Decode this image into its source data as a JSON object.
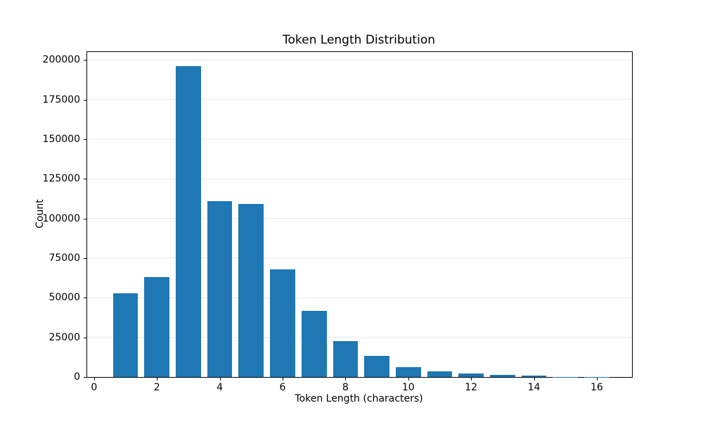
{
  "figure": {
    "background": "#ffffff",
    "frame_color": "#000000"
  },
  "chart_data": {
    "type": "bar",
    "title": "Token Length Distribution",
    "xlabel": "Token Length (characters)",
    "ylabel": "Count",
    "categories": [
      1,
      2,
      3,
      4,
      5,
      6,
      7,
      8,
      9,
      10,
      11,
      12,
      13,
      14,
      15,
      16
    ],
    "values": [
      53000,
      63000,
      196000,
      111000,
      109000,
      68000,
      41500,
      22700,
      13300,
      6200,
      3600,
      2300,
      1200,
      700,
      200,
      60
    ],
    "bar_color": "#1f77b4",
    "bar_width": 0.8,
    "xlim": [
      -0.22,
      17.12
    ],
    "ylim": [
      0,
      205000
    ],
    "x_ticks": [
      0,
      2,
      4,
      6,
      8,
      10,
      12,
      14,
      16
    ],
    "y_ticks": [
      0,
      25000,
      50000,
      75000,
      100000,
      125000,
      150000,
      175000,
      200000
    ],
    "grid": "horizontal",
    "grid_color": "#e8e8e8",
    "legend": "none"
  }
}
